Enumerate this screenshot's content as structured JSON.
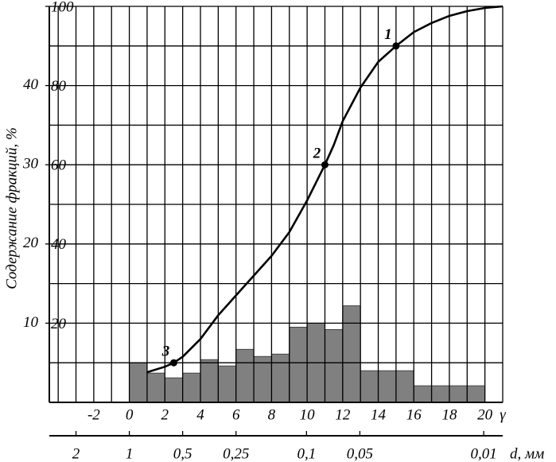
{
  "chart_data": {
    "type": "histogram",
    "ylabel": "Содержание фракций, %",
    "xlabel": "γ",
    "x2label": "d, мм",
    "xlim": [
      -4.5,
      21
    ],
    "xticks": [
      -2,
      0,
      2,
      4,
      6,
      8,
      10,
      12,
      14,
      16,
      18,
      20
    ],
    "x2ticks": [
      2,
      1,
      {
        "value": 0.5,
        "label": "0,5"
      },
      {
        "value": 0.25,
        "label": "0,25"
      },
      {
        "value": 0.1,
        "label": "0,1"
      },
      {
        "value": 0.05,
        "label": "0,05"
      },
      {
        "value": 0.01,
        "label": "0,01"
      }
    ],
    "ylim": [
      0,
      50
    ],
    "yticks": [
      10,
      20,
      30,
      40
    ],
    "y2lim": [
      0,
      100
    ],
    "y2ticks": [
      20,
      40,
      60,
      80,
      100
    ],
    "grid": true,
    "bins": [
      0,
      1,
      2,
      3,
      4,
      5,
      6,
      7,
      8,
      9,
      10,
      11,
      12,
      13,
      14,
      15,
      16,
      17,
      18,
      19,
      20
    ],
    "values": [
      5.0,
      3.7,
      3.1,
      3.7,
      5.4,
      4.6,
      6.7,
      5.8,
      6.1,
      9.5,
      10.0,
      9.2,
      12.2,
      4.0,
      4.0,
      4.0,
      2.1,
      2.1,
      2.1,
      2.1
    ],
    "color": "#808080",
    "series": [
      {
        "type": "line",
        "axis": "y2",
        "color": "#000000",
        "x": [
          1,
          2,
          2.5,
          3,
          4,
          5,
          6,
          7,
          8,
          9,
          10,
          11,
          11.5,
          12,
          13,
          14,
          15,
          16,
          17,
          18,
          19,
          20,
          21
        ],
        "values": [
          7.6,
          9,
          10,
          11.5,
          16,
          22,
          27,
          32,
          37,
          43,
          51,
          60,
          65,
          71,
          79.5,
          86,
          90,
          93.5,
          95.8,
          97.6,
          98.8,
          99.6,
          100
        ]
      }
    ],
    "points": {
      "x": [
        15,
        11,
        2.5
      ],
      "values": [
        90,
        60,
        10
      ],
      "labels": [
        "1",
        "2",
        "3"
      ]
    }
  }
}
